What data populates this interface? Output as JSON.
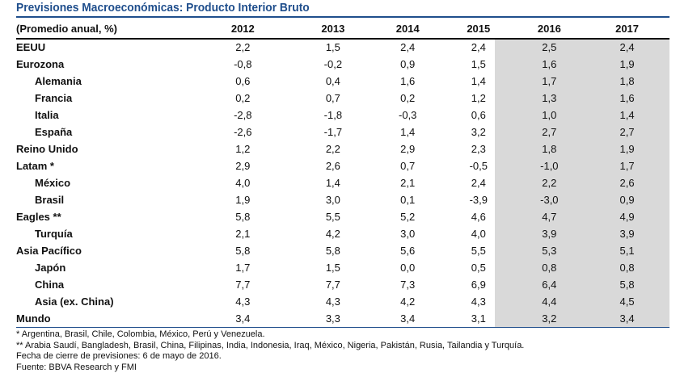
{
  "title": "Previsiones Macroeconómicas: Producto Interior Bruto",
  "header": [
    "(Promedio anual, %)",
    "2012",
    "2013",
    "2014",
    "2015",
    "2016",
    "2017"
  ],
  "rows": [
    {
      "label": "EEUU",
      "indent": false,
      "values": [
        "2,2",
        "1,5",
        "2,4",
        "2,4",
        "2,5",
        "2,4"
      ]
    },
    {
      "label": "Eurozona",
      "indent": false,
      "values": [
        "-0,8",
        "-0,2",
        "0,9",
        "1,5",
        "1,6",
        "1,9"
      ]
    },
    {
      "label": "Alemania",
      "indent": true,
      "values": [
        "0,6",
        "0,4",
        "1,6",
        "1,4",
        "1,7",
        "1,8"
      ]
    },
    {
      "label": "Francia",
      "indent": true,
      "values": [
        "0,2",
        "0,7",
        "0,2",
        "1,2",
        "1,3",
        "1,6"
      ]
    },
    {
      "label": "Italia",
      "indent": true,
      "values": [
        "-2,8",
        "-1,8",
        "-0,3",
        "0,6",
        "1,0",
        "1,4"
      ]
    },
    {
      "label": "España",
      "indent": true,
      "values": [
        "-2,6",
        "-1,7",
        "1,4",
        "3,2",
        "2,7",
        "2,7"
      ]
    },
    {
      "label": "Reino Unido",
      "indent": false,
      "values": [
        "1,2",
        "2,2",
        "2,9",
        "2,3",
        "1,8",
        "1,9"
      ]
    },
    {
      "label": "Latam *",
      "indent": false,
      "values": [
        "2,9",
        "2,6",
        "0,7",
        "-0,5",
        "-1,0",
        "1,7"
      ]
    },
    {
      "label": "México",
      "indent": true,
      "values": [
        "4,0",
        "1,4",
        "2,1",
        "2,4",
        "2,2",
        "2,6"
      ]
    },
    {
      "label": "Brasil",
      "indent": true,
      "values": [
        "1,9",
        "3,0",
        "0,1",
        "-3,9",
        "-3,0",
        "0,9"
      ]
    },
    {
      "label": "Eagles **",
      "indent": false,
      "values": [
        "5,8",
        "5,5",
        "5,2",
        "4,6",
        "4,7",
        "4,9"
      ]
    },
    {
      "label": "Turquía",
      "indent": true,
      "values": [
        "2,1",
        "4,2",
        "3,0",
        "4,0",
        "3,9",
        "3,9"
      ]
    },
    {
      "label": "Asia Pacífico",
      "indent": false,
      "values": [
        "5,8",
        "5,8",
        "5,6",
        "5,5",
        "5,3",
        "5,1"
      ]
    },
    {
      "label": "Japón",
      "indent": true,
      "values": [
        "1,7",
        "1,5",
        "0,0",
        "0,5",
        "0,8",
        "0,8"
      ]
    },
    {
      "label": "China",
      "indent": true,
      "values": [
        "7,7",
        "7,7",
        "7,3",
        "6,9",
        "6,4",
        "5,8"
      ]
    },
    {
      "label": "Asia (ex. China)",
      "indent": true,
      "values": [
        "4,3",
        "4,3",
        "4,2",
        "4,3",
        "4,4",
        "4,5"
      ]
    },
    {
      "label": "Mundo",
      "indent": false,
      "values": [
        "3,4",
        "3,3",
        "3,4",
        "3,1",
        "3,2",
        "3,4"
      ]
    }
  ],
  "notes": [
    "* Argentina, Brasil, Chile, Colombia, México, Perú y Venezuela.",
    "** Arabia Saudí, Bangladesh, Brasil, China, Filipinas, India, Indonesia, Iraq, México, Nigeria, Pakistán, Rusia, Tailandia y Turquía.",
    "Fecha de cierre de previsiones: 6 de mayo de 2016.",
    "Fuente: BBVA Research y FMI"
  ],
  "colors": {
    "title": "#1f4e8c",
    "forecast_shade": "#d9d9d9"
  }
}
